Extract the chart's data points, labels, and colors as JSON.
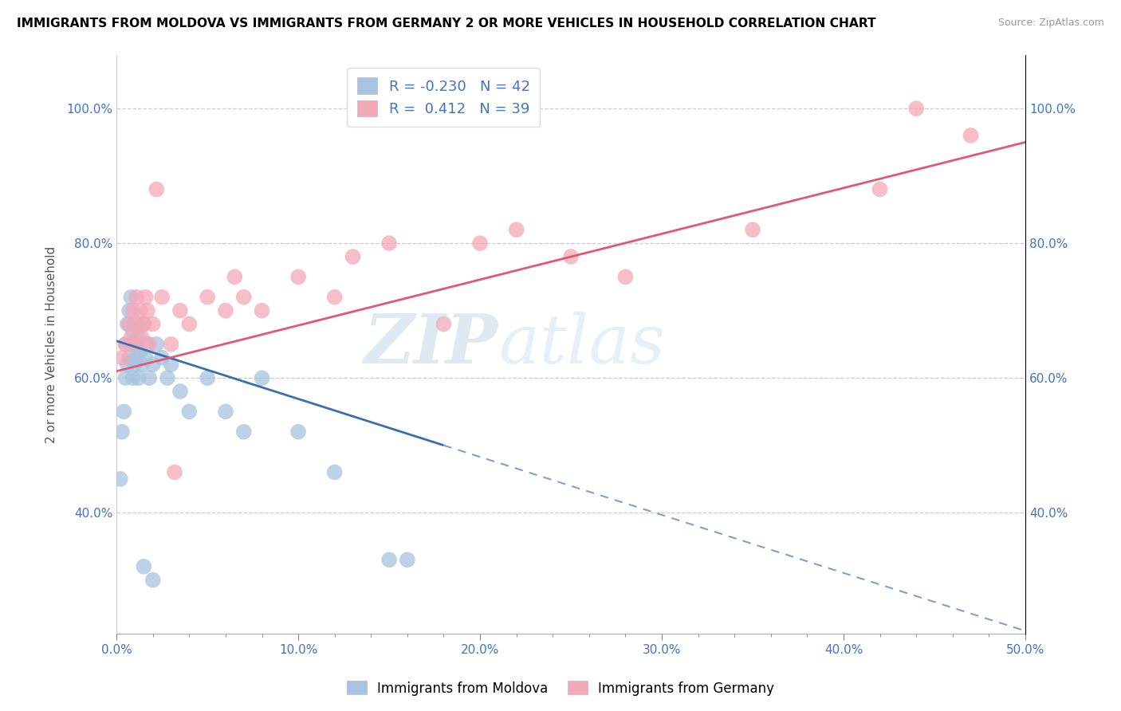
{
  "title": "IMMIGRANTS FROM MOLDOVA VS IMMIGRANTS FROM GERMANY 2 OR MORE VEHICLES IN HOUSEHOLD CORRELATION CHART",
  "source": "Source: ZipAtlas.com",
  "xlabel": "",
  "ylabel": "2 or more Vehicles in Household",
  "xlim": [
    0.0,
    50.0
  ],
  "ylim": [
    22.0,
    108.0
  ],
  "xticks": [
    0.0,
    10.0,
    20.0,
    30.0,
    40.0,
    50.0
  ],
  "yticks": [
    40.0,
    60.0,
    80.0,
    100.0
  ],
  "ytick_labels": [
    "40.0%",
    "60.0%",
    "80.0%",
    "100.0%"
  ],
  "xtick_labels": [
    "0.0%",
    "10.0%",
    "20.0%",
    "30.0%",
    "40.0%",
    "50.0%"
  ],
  "R_moldova": -0.23,
  "N_moldova": 42,
  "R_germany": 0.412,
  "N_germany": 39,
  "color_moldova": "#a8c4e0",
  "color_germany": "#f4a8b8",
  "line_color_moldova": "#3a6eaf",
  "line_color_germany": "#e05878",
  "watermark_zip": "ZIP",
  "watermark_atlas": "atlas",
  "moldova_x": [
    0.2,
    0.3,
    0.4,
    0.5,
    0.5,
    0.6,
    0.6,
    0.7,
    0.7,
    0.8,
    0.8,
    0.9,
    0.9,
    1.0,
    1.0,
    1.1,
    1.1,
    1.2,
    1.2,
    1.3,
    1.4,
    1.5,
    1.6,
    1.7,
    1.8,
    2.0,
    2.2,
    2.5,
    2.8,
    3.0,
    3.5,
    4.0,
    5.0,
    6.0,
    7.0,
    8.0,
    10.0,
    12.0,
    1.5,
    2.0,
    15.0,
    16.0
  ],
  "moldova_y": [
    45.0,
    52.0,
    55.0,
    60.0,
    65.0,
    62.0,
    68.0,
    63.0,
    70.0,
    65.0,
    72.0,
    60.0,
    67.0,
    62.0,
    68.0,
    65.0,
    63.0,
    66.0,
    60.0,
    64.0,
    62.0,
    68.0,
    63.0,
    65.0,
    60.0,
    62.0,
    65.0,
    63.0,
    60.0,
    62.0,
    58.0,
    55.0,
    60.0,
    55.0,
    52.0,
    60.0,
    52.0,
    46.0,
    32.0,
    30.0,
    33.0,
    33.0
  ],
  "germany_x": [
    0.3,
    0.5,
    0.7,
    0.8,
    0.9,
    1.0,
    1.1,
    1.2,
    1.3,
    1.4,
    1.5,
    1.6,
    1.7,
    1.8,
    2.0,
    2.5,
    3.0,
    3.5,
    4.0,
    5.0,
    6.0,
    6.5,
    7.0,
    8.0,
    10.0,
    12.0,
    13.0,
    15.0,
    18.0,
    20.0,
    22.0,
    25.0,
    28.0,
    35.0,
    42.0,
    44.0,
    47.0,
    2.2,
    3.2
  ],
  "germany_y": [
    63.0,
    65.0,
    68.0,
    66.0,
    70.0,
    65.0,
    72.0,
    68.0,
    70.0,
    66.0,
    68.0,
    72.0,
    70.0,
    65.0,
    68.0,
    72.0,
    65.0,
    70.0,
    68.0,
    72.0,
    70.0,
    75.0,
    72.0,
    70.0,
    75.0,
    72.0,
    78.0,
    80.0,
    68.0,
    80.0,
    82.0,
    78.0,
    75.0,
    82.0,
    88.0,
    100.0,
    96.0,
    88.0,
    46.0
  ],
  "mol_line_x0": 0.0,
  "mol_line_y0": 65.5,
  "mol_line_x1": 18.0,
  "mol_line_y1": 50.0,
  "ger_line_x0": 0.0,
  "ger_line_y0": 61.0,
  "ger_line_x1": 50.0,
  "ger_line_y1": 95.0
}
